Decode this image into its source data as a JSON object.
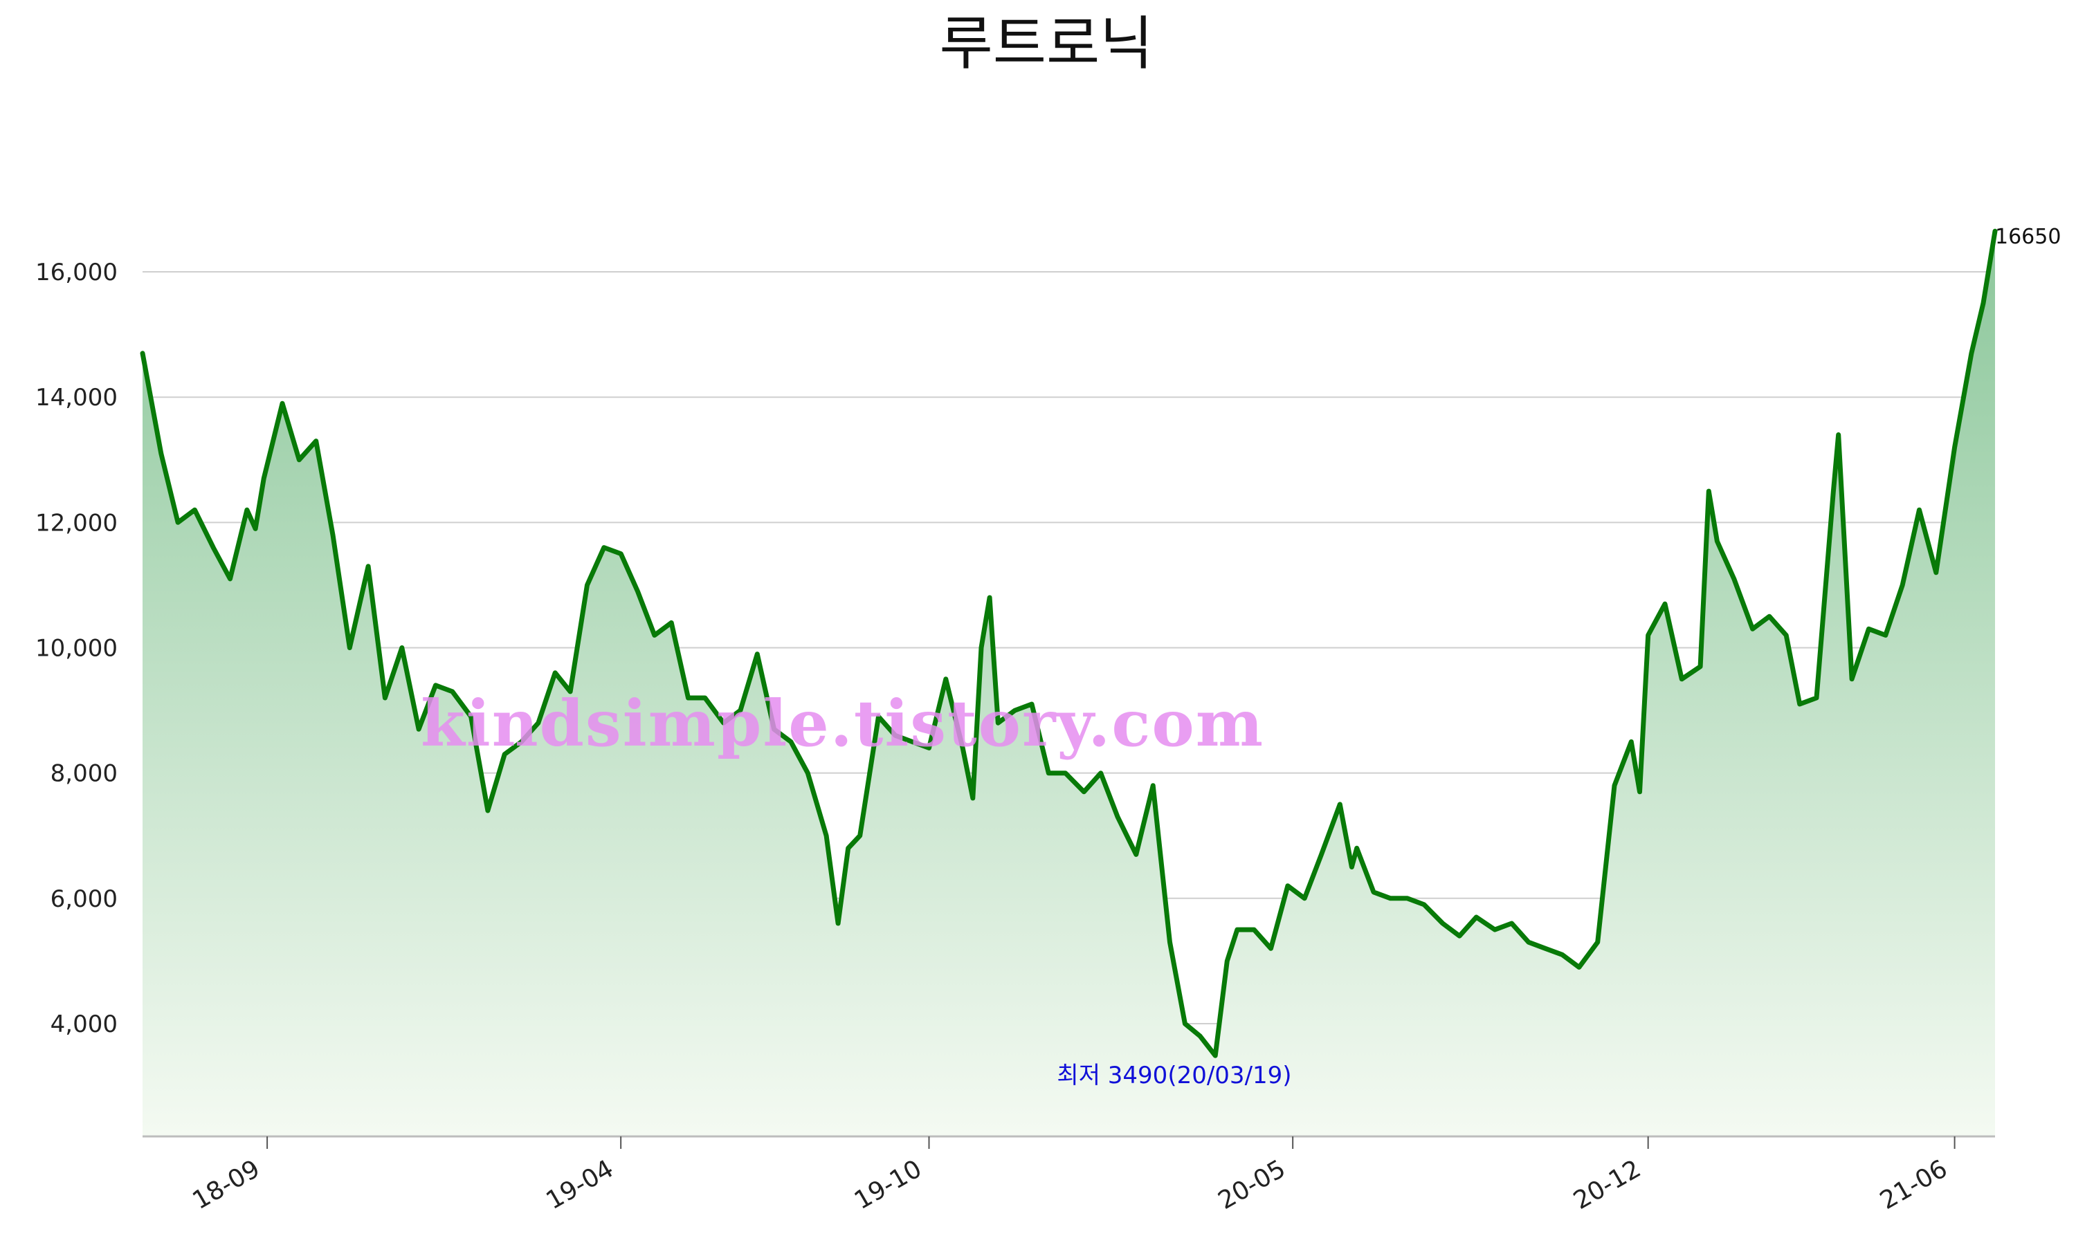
{
  "chart_data": {
    "type": "area",
    "title": "루트로닉",
    "xlabel": "",
    "ylabel": "",
    "ylim": [
      2200,
      17800
    ],
    "y_ticks": [
      "4,000",
      "6,000",
      "8,000",
      "10,000",
      "12,000",
      "14,000",
      "16,000"
    ],
    "y_tick_values": [
      4000,
      6000,
      8000,
      10000,
      12000,
      14000,
      16000
    ],
    "x_ticks": [
      "18-09",
      "19-04",
      "19-10",
      "20-05",
      "20-12",
      "21-06"
    ],
    "x_tick_dates": [
      "2018-09-03",
      "2019-04-01",
      "2019-10-01",
      "2020-05-04",
      "2020-12-01",
      "2021-06-01"
    ],
    "xlim": [
      "2018-06-21",
      "2021-06-25"
    ],
    "grid": true,
    "colors": {
      "line": "#087a08",
      "fill_top": "#8cc79b",
      "fill_bottom": "#f4faf2",
      "min_label": "#1010d8",
      "watermark": "#e58df0"
    },
    "annotations": {
      "max_label": "16650",
      "min_label": "최저 3490(20/03/19)"
    },
    "watermark": "kindsimple.tistory.com",
    "series": [
      {
        "x": [
          "2018-06-21",
          "2018-07-02",
          "2018-07-12",
          "2018-07-22",
          "2018-08-02",
          "2018-08-12",
          "2018-08-22",
          "2018-08-27",
          "2018-09-01",
          "2018-09-12",
          "2018-09-22",
          "2018-10-02",
          "2018-10-12",
          "2018-10-22",
          "2018-11-02",
          "2018-11-12",
          "2018-11-22",
          "2018-12-02",
          "2018-12-12",
          "2018-12-22",
          "2019-01-02",
          "2019-01-12",
          "2019-01-22",
          "2019-02-01",
          "2019-02-11",
          "2019-02-21",
          "2019-03-02",
          "2019-03-12",
          "2019-03-22",
          "2019-04-01",
          "2019-04-11",
          "2019-04-21",
          "2019-05-01",
          "2019-05-11",
          "2019-05-21",
          "2019-06-01",
          "2019-06-11",
          "2019-06-21",
          "2019-07-01",
          "2019-07-11",
          "2019-07-21",
          "2019-08-01",
          "2019-08-08",
          "2019-08-14",
          "2019-08-21",
          "2019-09-01",
          "2019-09-11",
          "2019-09-21",
          "2019-10-01",
          "2019-10-11",
          "2019-10-21",
          "2019-10-27",
          "2019-11-01",
          "2019-11-06",
          "2019-11-11",
          "2019-11-21",
          "2019-12-01",
          "2019-12-11",
          "2019-12-21",
          "2020-01-01",
          "2020-01-11",
          "2020-01-21",
          "2020-02-01",
          "2020-02-11",
          "2020-02-21",
          "2020-03-01",
          "2020-03-10",
          "2020-03-19",
          "2020-03-26",
          "2020-04-01",
          "2020-04-11",
          "2020-04-21",
          "2020-05-01",
          "2020-05-11",
          "2020-05-21",
          "2020-06-01",
          "2020-06-08",
          "2020-06-11",
          "2020-06-21",
          "2020-07-01",
          "2020-07-11",
          "2020-07-21",
          "2020-08-01",
          "2020-08-11",
          "2020-08-21",
          "2020-09-01",
          "2020-09-11",
          "2020-09-21",
          "2020-10-01",
          "2020-10-11",
          "2020-10-21",
          "2020-11-01",
          "2020-11-11",
          "2020-11-21",
          "2020-11-26",
          "2020-12-01",
          "2020-12-11",
          "2020-12-21",
          "2021-01-01",
          "2021-01-06",
          "2021-01-11",
          "2021-01-21",
          "2021-02-01",
          "2021-02-11",
          "2021-02-21",
          "2021-03-01",
          "2021-03-11",
          "2021-03-21",
          "2021-03-24",
          "2021-04-01",
          "2021-04-11",
          "2021-04-21",
          "2021-05-01",
          "2021-05-11",
          "2021-05-21",
          "2021-06-01",
          "2021-06-11",
          "2021-06-18",
          "2021-06-25"
        ],
        "values": [
          14700,
          13100,
          12000,
          12200,
          11600,
          11100,
          12200,
          11900,
          12700,
          13900,
          13000,
          13300,
          11800,
          10000,
          11300,
          9200,
          10000,
          8700,
          9400,
          9300,
          8900,
          7400,
          8300,
          8500,
          8800,
          9600,
          9300,
          11000,
          11600,
          11500,
          10900,
          10200,
          10400,
          9200,
          9200,
          8800,
          9000,
          9900,
          8700,
          8500,
          8000,
          7000,
          5600,
          6800,
          7000,
          8900,
          8600,
          8500,
          8400,
          9500,
          8400,
          7600,
          10000,
          10800,
          8800,
          9000,
          9100,
          8000,
          8000,
          7700,
          8000,
          7300,
          6700,
          7800,
          5300,
          4000,
          3800,
          3490,
          5000,
          5500,
          5500,
          5200,
          6200,
          6000,
          6700,
          7500,
          6500,
          6800,
          6100,
          6000,
          6000,
          5900,
          5600,
          5400,
          5700,
          5500,
          5600,
          5300,
          5200,
          5100,
          4900,
          5300,
          7800,
          8500,
          7700,
          10200,
          10700,
          9500,
          9700,
          12500,
          11700,
          11100,
          10300,
          10500,
          10200,
          9100,
          9200,
          12500,
          13400,
          9500,
          10300,
          10200,
          11000,
          12200,
          11200,
          13200,
          14700,
          15500,
          16650
        ]
      }
    ]
  }
}
